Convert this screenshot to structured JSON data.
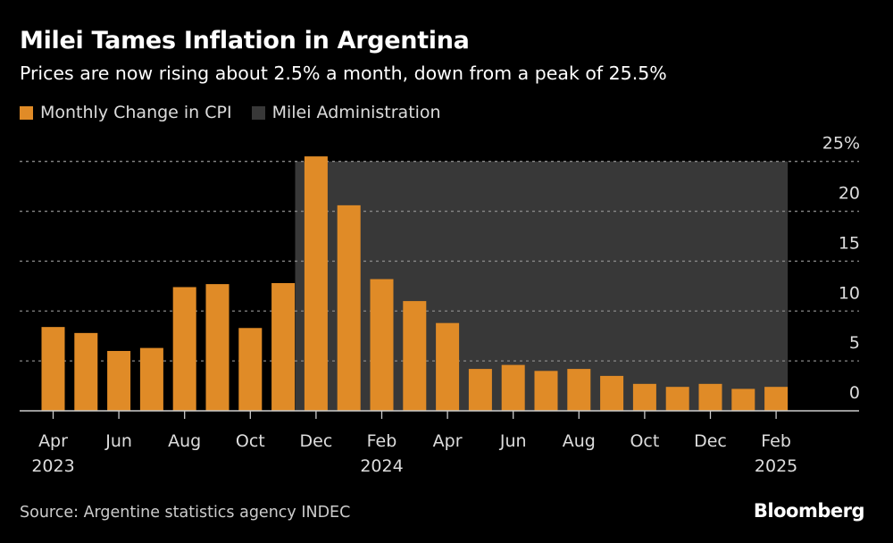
{
  "chart_data": {
    "type": "bar",
    "title": "Milei Tames Inflation in Argentina",
    "subtitle": "Prices are now rising about 2.5% a month, down from a peak of 25.5%",
    "categories": [
      "Apr 2023",
      "May 2023",
      "Jun 2023",
      "Jul 2023",
      "Aug 2023",
      "Sep 2023",
      "Oct 2023",
      "Nov 2023",
      "Dec 2023",
      "Jan 2024",
      "Feb 2024",
      "Mar 2024",
      "Apr 2024",
      "May 2024",
      "Jun 2024",
      "Jul 2024",
      "Aug 2024",
      "Sep 2024",
      "Oct 2024",
      "Nov 2024",
      "Dec 2024",
      "Jan 2025",
      "Feb 2025"
    ],
    "series": [
      {
        "name": "Monthly Change in CPI",
        "color": "#e08b27",
        "values": [
          8.4,
          7.8,
          6.0,
          6.3,
          12.4,
          12.7,
          8.3,
          12.8,
          25.5,
          20.6,
          13.2,
          11.0,
          8.8,
          4.2,
          4.6,
          4.0,
          4.2,
          3.5,
          2.7,
          2.4,
          2.7,
          2.2,
          2.4
        ]
      }
    ],
    "shaded_region": {
      "name": "Milei Administration",
      "color": "#383838",
      "start": "Dec 2023",
      "end": "Feb 2025"
    },
    "x_tick_labels": [
      {
        "index": 0,
        "month": "Apr",
        "year": "2023"
      },
      {
        "index": 2,
        "month": "Jun",
        "year": ""
      },
      {
        "index": 4,
        "month": "Aug",
        "year": ""
      },
      {
        "index": 6,
        "month": "Oct",
        "year": ""
      },
      {
        "index": 8,
        "month": "Dec",
        "year": ""
      },
      {
        "index": 10,
        "month": "Feb",
        "year": "2024"
      },
      {
        "index": 12,
        "month": "Apr",
        "year": ""
      },
      {
        "index": 14,
        "month": "Jun",
        "year": ""
      },
      {
        "index": 16,
        "month": "Aug",
        "year": ""
      },
      {
        "index": 18,
        "month": "Oct",
        "year": ""
      },
      {
        "index": 20,
        "month": "Dec",
        "year": ""
      },
      {
        "index": 22,
        "month": "Feb",
        "year": "2025"
      }
    ],
    "y_ticks": [
      0,
      5,
      10,
      15,
      20,
      25
    ],
    "y_tick_labels": [
      "0",
      "5",
      "10",
      "15",
      "20",
      "25%"
    ],
    "ylim": [
      0,
      25
    ],
    "y_axis_side": "right",
    "grid": true,
    "legend_placement": "top-left"
  },
  "legend": {
    "cpi": "Monthly Change in CPI",
    "milei": "Milei Administration"
  },
  "source": "Source: Argentine statistics agency INDEC",
  "logo": "Bloomberg"
}
